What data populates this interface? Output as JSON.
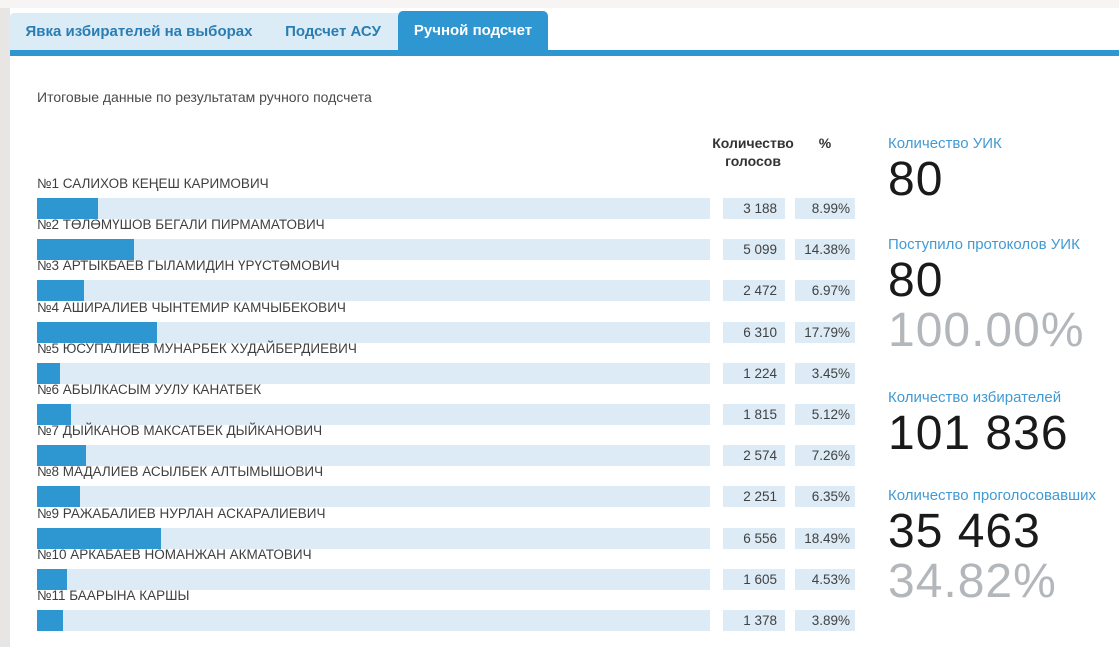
{
  "tabs": [
    {
      "label": "Явка избирателей на выборах",
      "active": false
    },
    {
      "label": "Подсчет АСУ",
      "active": false
    },
    {
      "label": "Ручной подсчет",
      "active": true
    }
  ],
  "subtitle": "Итоговые данные по результатам ручного подсчета",
  "table": {
    "header_votes_line1": "Количество",
    "header_votes_line2": "голосов",
    "header_percent": "%"
  },
  "candidates": [
    {
      "name": "№1 САЛИХОВ КЕҢЕШ КАРИМОВИЧ",
      "votes": "3 188",
      "percent": "8.99%",
      "pct": 8.99
    },
    {
      "name": "№2 ТӨЛӨМҮШОВ БЕГАЛИ ПИРМАМАТОВИЧ",
      "votes": "5 099",
      "percent": "14.38%",
      "pct": 14.38
    },
    {
      "name": "№3 АРТЫКБАЕВ ГЫЛАМИДИН ҮРҮСТӨМОВИЧ",
      "votes": "2 472",
      "percent": "6.97%",
      "pct": 6.97
    },
    {
      "name": "№4 АШИРАЛИЕВ ЧЫНТЕМИР КАМЧЫБЕКОВИЧ",
      "votes": "6 310",
      "percent": "17.79%",
      "pct": 17.79
    },
    {
      "name": "№5 ЮСУПАЛИЕВ МУНАРБЕК ХУДАЙБЕРДИЕВИЧ",
      "votes": "1 224",
      "percent": "3.45%",
      "pct": 3.45
    },
    {
      "name": "№6 АБЫЛКАСЫМ УУЛУ КАНАТБЕК",
      "votes": "1 815",
      "percent": "5.12%",
      "pct": 5.12
    },
    {
      "name": "№7 ДЫЙКАНОВ МАКСАТБЕК ДЫЙКАНОВИЧ",
      "votes": "2 574",
      "percent": "7.26%",
      "pct": 7.26
    },
    {
      "name": "№8 МАДАЛИЕВ АСЫЛБЕК АЛТЫМЫШОВИЧ",
      "votes": "2 251",
      "percent": "6.35%",
      "pct": 6.35
    },
    {
      "name": "№9 РАЖАБАЛИЕВ НУРЛАН АСКАРАЛИЕВИЧ",
      "votes": "6 556",
      "percent": "18.49%",
      "pct": 18.49
    },
    {
      "name": "№10 АРКАБАЕВ НОМАНЖАН АКМАТОВИЧ",
      "votes": "1 605",
      "percent": "4.53%",
      "pct": 4.53
    },
    {
      "name": "№11 БААРЫНА КАРШЫ",
      "votes": "1 378",
      "percent": "3.89%",
      "pct": 3.89
    }
  ],
  "summary": [
    {
      "label": "Количество УИК",
      "value": "80",
      "sub": ""
    },
    {
      "label": "Поступило протоколов УИК",
      "value": "80",
      "sub": "100.00%"
    },
    {
      "label": "Количество избирателей",
      "value": "101 836",
      "sub": ""
    },
    {
      "label": "Количество проголосовавших",
      "value": "35 463",
      "sub": "34.82%"
    }
  ],
  "chart_data": {
    "type": "bar",
    "orientation": "horizontal",
    "title": "Итоговые данные по результатам ручного подсчета",
    "categories": [
      "№1 САЛИХОВ КЕҢЕШ КАРИМОВИЧ",
      "№2 ТӨЛӨМҮШОВ БЕГАЛИ ПИРМАМАТОВИЧ",
      "№3 АРТЫКБАЕВ ГЫЛАМИДИН ҮРҮСТӨМОВИЧ",
      "№4 АШИРАЛИЕВ ЧЫНТЕМИР КАМЧЫБЕКОВИЧ",
      "№5 ЮСУПАЛИЕВ МУНАРБЕК ХУДАЙБЕРДИЕВИЧ",
      "№6 АБЫЛКАСЫМ УУЛУ КАНАТБЕК",
      "№7 ДЫЙКАНОВ МАКСАТБЕК ДЫЙКАНОВИЧ",
      "№8 МАДАЛИЕВ АСЫЛБЕК АЛТЫМЫШОВИЧ",
      "№9 РАЖАБАЛИЕВ НУРЛАН АСКАРАЛИЕВИЧ",
      "№10 АРКАБАЕВ НОМАНЖАН АКМАТОВИЧ",
      "№11 БААРЫНА КАРШЫ"
    ],
    "series": [
      {
        "name": "Количество голосов",
        "values": [
          3188,
          5099,
          2472,
          6310,
          1224,
          1815,
          2574,
          2251,
          6556,
          1605,
          1378
        ]
      },
      {
        "name": "%",
        "values": [
          8.99,
          14.38,
          6.97,
          17.79,
          3.45,
          5.12,
          7.26,
          6.35,
          18.49,
          4.53,
          3.89
        ]
      }
    ],
    "xlim": [
      0,
      100
    ],
    "grid": false,
    "legend_position": "none"
  },
  "colors": {
    "accent_blue": "#2e96d0",
    "light_blue": "#dcebf5",
    "tab_light_blue": "#dbecf7",
    "tab_text_blue": "#2a7db3",
    "label_blue": "#429ad3",
    "big_number": "#1a1a1a",
    "gray_number": "#b3b7bb",
    "page_strip_gray": "#e8e6e4"
  }
}
